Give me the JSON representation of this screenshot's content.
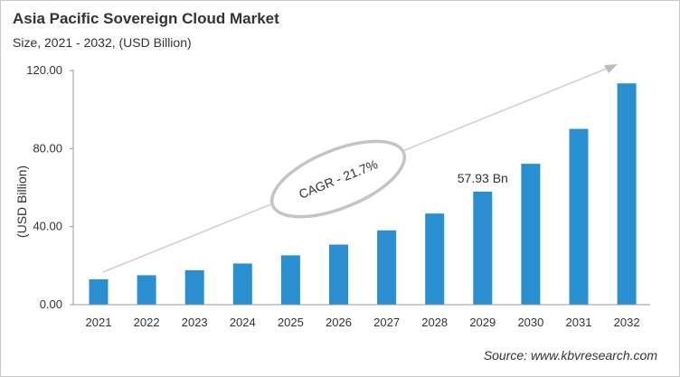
{
  "chart_data": {
    "type": "bar",
    "title": "Asia Pacific Sovereign Cloud Market",
    "subtitle": "Size, 2021 - 2032, (USD Billion)",
    "ylabel": "(USD Billion)",
    "xlabel": "",
    "categories": [
      "2021",
      "2022",
      "2023",
      "2024",
      "2025",
      "2026",
      "2027",
      "2028",
      "2029",
      "2030",
      "2031",
      "2032"
    ],
    "values": [
      13.0,
      15.1,
      17.6,
      21.1,
      25.3,
      30.8,
      38.1,
      46.7,
      57.93,
      72.2,
      90.1,
      113.4
    ],
    "ylim": [
      0,
      120
    ],
    "yticks": [
      "0.00",
      "40.00",
      "80.00",
      "120.00"
    ],
    "data_labels": [
      {
        "category": "2029",
        "text": "57.93 Bn"
      }
    ],
    "annotation": "CAGR - 21.7%",
    "grid": false,
    "legend": "none",
    "bar_color": "#2a8fd0",
    "source": "Source: www.kbvresearch.com"
  }
}
